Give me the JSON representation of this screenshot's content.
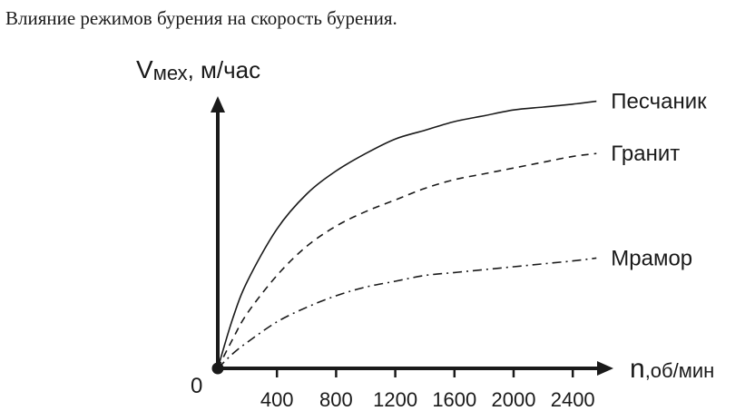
{
  "caption": "Влияние режимов бурения на скорость бурения.",
  "chart_data": {
    "type": "line",
    "title": "Влияние режимов бурения на скорость бурения.",
    "ylabel_main": "V",
    "ylabel_sub": "мех",
    "ylabel_unit": ", м/час",
    "xlabel_main": "n",
    "xlabel_unit": ",об/мин",
    "origin_label": "0",
    "x_ticks": [
      400,
      800,
      1200,
      1600,
      2000,
      2400
    ],
    "xlim": [
      0,
      2600
    ],
    "ylim": [
      0,
      1
    ],
    "y_ticks_shown": false,
    "legend": "inline-right",
    "series": [
      {
        "name": "Песчаник",
        "style": "solid",
        "x": [
          0,
          100,
          200,
          400,
          600,
          800,
          1000,
          1200,
          1400,
          1600,
          1800,
          2000,
          2200,
          2400,
          2560
        ],
        "y": [
          0,
          0.17,
          0.3,
          0.48,
          0.6,
          0.68,
          0.74,
          0.79,
          0.82,
          0.85,
          0.87,
          0.89,
          0.9,
          0.91,
          0.92
        ]
      },
      {
        "name": "Гранит",
        "style": "dashed",
        "x": [
          0,
          100,
          200,
          400,
          600,
          800,
          1000,
          1200,
          1400,
          1600,
          1800,
          2000,
          2200,
          2400,
          2560
        ],
        "y": [
          0,
          0.1,
          0.19,
          0.32,
          0.42,
          0.49,
          0.54,
          0.58,
          0.62,
          0.65,
          0.67,
          0.69,
          0.71,
          0.73,
          0.74
        ]
      },
      {
        "name": "Мрамор",
        "style": "dashdot",
        "x": [
          0,
          100,
          200,
          400,
          600,
          800,
          1000,
          1200,
          1400,
          1600,
          1800,
          2000,
          2200,
          2400,
          2560
        ],
        "y": [
          0,
          0.05,
          0.09,
          0.16,
          0.21,
          0.25,
          0.28,
          0.3,
          0.32,
          0.33,
          0.34,
          0.35,
          0.36,
          0.37,
          0.38
        ]
      }
    ]
  }
}
